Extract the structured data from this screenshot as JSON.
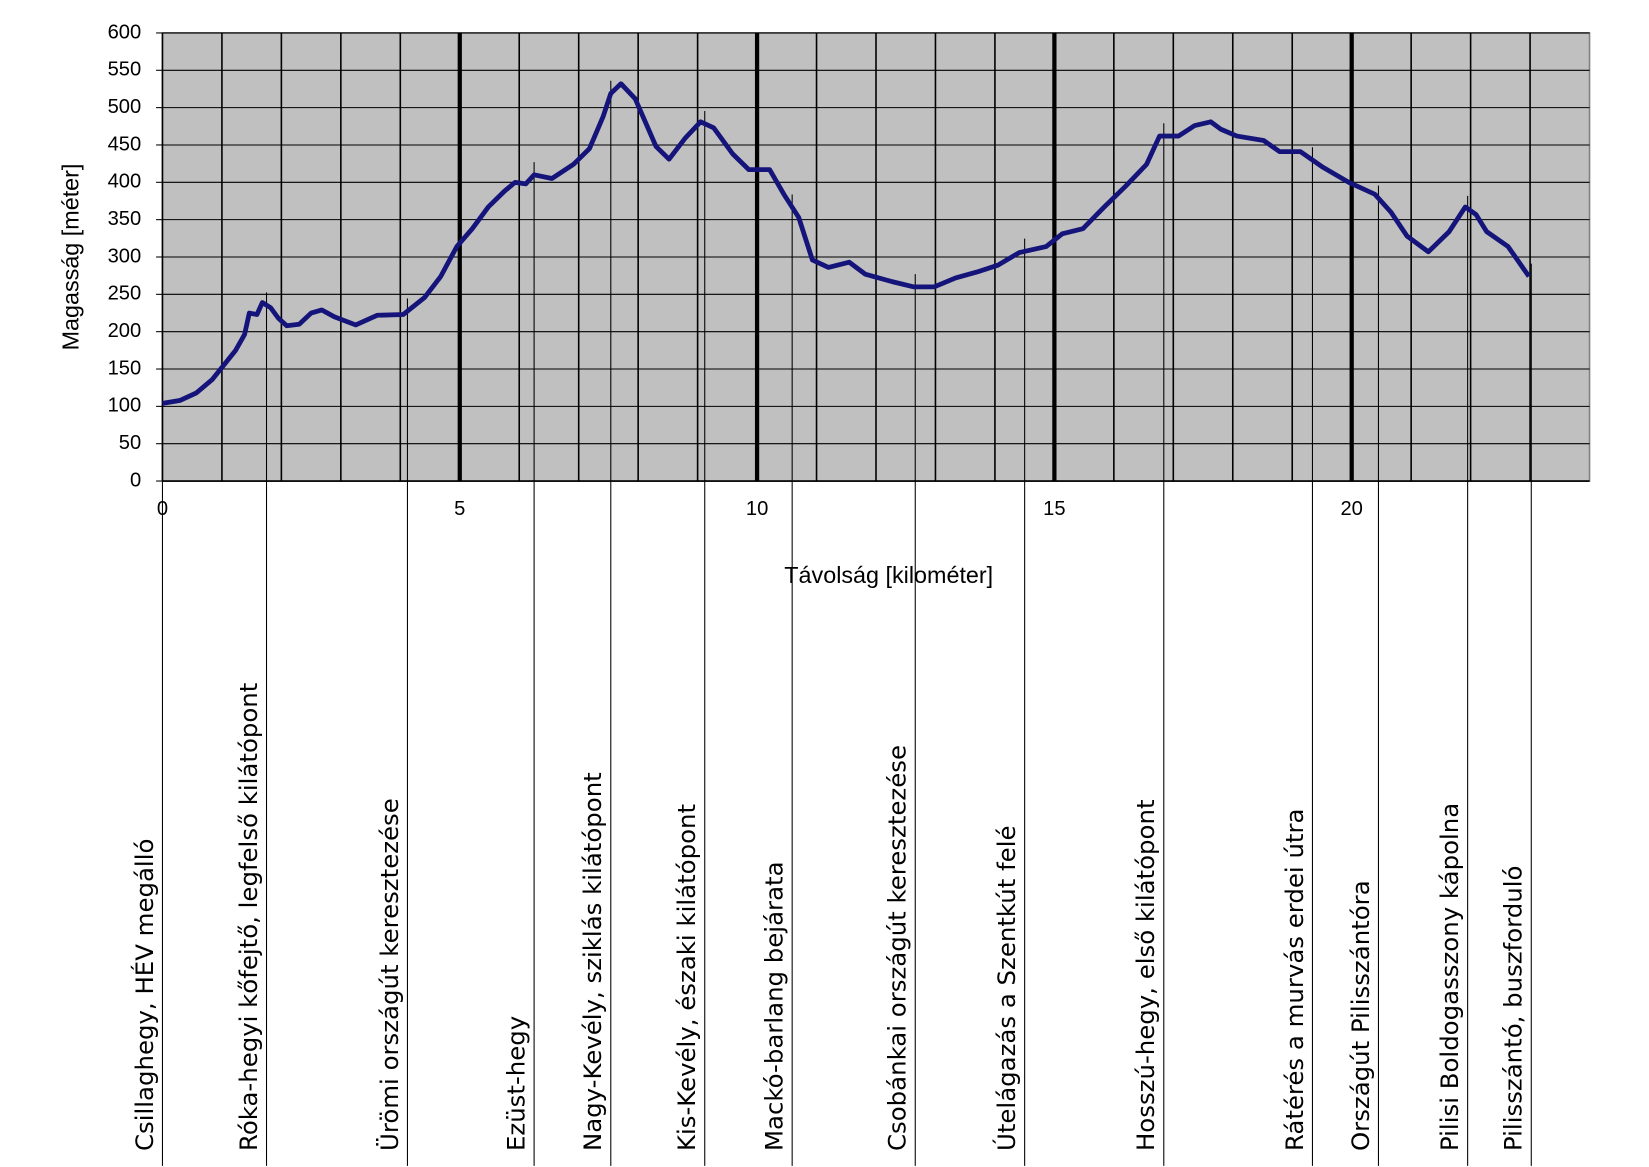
{
  "chart_data": {
    "type": "line",
    "y_label": "Magasság [méter]",
    "x_label": "Távolság [kilométer]",
    "xlim": [
      0,
      24
    ],
    "ylim": [
      0,
      600
    ],
    "xticks": [
      0,
      5,
      10,
      15,
      20
    ],
    "x_gridlines": [
      1,
      2,
      3,
      4,
      5,
      6,
      7,
      8,
      9,
      10,
      11,
      12,
      13,
      14,
      15,
      16,
      17,
      18,
      19,
      20,
      21,
      22,
      23
    ],
    "yticks": [
      0,
      50,
      100,
      150,
      200,
      250,
      300,
      350,
      400,
      450,
      500,
      550,
      600
    ],
    "grid": true,
    "plot_background": "#c0c0c0",
    "series": [
      {
        "name": "Magasság",
        "color": "#14147a",
        "x": [
          0,
          0.3,
          0.57,
          0.84,
          1.02,
          1.23,
          1.38,
          1.46,
          1.59,
          1.68,
          1.82,
          1.95,
          2.09,
          2.3,
          2.5,
          2.68,
          2.89,
          3.25,
          3.61,
          4.05,
          4.41,
          4.68,
          4.95,
          5.21,
          5.48,
          5.75,
          5.93,
          6.11,
          6.25,
          6.55,
          6.91,
          7.18,
          7.41,
          7.54,
          7.71,
          7.95,
          8.12,
          8.3,
          8.52,
          8.79,
          9.05,
          9.27,
          9.59,
          9.86,
          10.21,
          10.45,
          10.7,
          10.93,
          11.2,
          11.55,
          11.82,
          12.27,
          12.63,
          12.98,
          13.34,
          13.7,
          14.05,
          14.41,
          14.86,
          15.13,
          15.48,
          15.84,
          16.2,
          16.55,
          16.77,
          17.09,
          17.36,
          17.63,
          17.8,
          18.07,
          18.52,
          18.79,
          19.14,
          19.5,
          19.95,
          20.39,
          20.66,
          20.93,
          21.29,
          21.64,
          21.91,
          22.09,
          22.27,
          22.63,
          22.98
        ],
        "values": [
          104,
          108,
          118,
          136,
          154,
          175,
          196,
          225,
          223,
          239,
          232,
          218,
          208,
          210,
          225,
          229,
          220,
          209,
          222,
          223,
          246,
          274,
          314,
          338,
          367,
          388,
          400,
          398,
          410,
          405,
          424,
          445,
          488,
          519,
          532,
          512,
          481,
          448,
          431,
          459,
          481,
          473,
          438,
          417,
          417,
          384,
          353,
          296,
          286,
          293,
          277,
          267,
          260,
          260,
          272,
          280,
          289,
          306,
          314,
          331,
          338,
          367,
          395,
          424,
          462,
          462,
          476,
          481,
          471,
          462,
          456,
          441,
          441,
          421,
          400,
          384,
          360,
          328,
          307,
          334,
          367,
          357,
          334,
          314,
          274
        ]
      }
    ],
    "landmarks": [
      {
        "label": "Csillaghegy, HÉV megálló",
        "km": 0
      },
      {
        "label": "Róka-hegyi kőfejtő, legfelső kilátópont",
        "km": 1.75
      },
      {
        "label": "Ürömi országút keresztezése",
        "km": 4.12
      },
      {
        "label": "Ezüst-hegy",
        "km": 6.25
      },
      {
        "label": "Nagy-Kevély, sziklás kilátópont",
        "km": 7.54
      },
      {
        "label": "Kis-Kevély, északi kilátópont",
        "km": 9.12
      },
      {
        "label": "Mackó-barlang bejárata",
        "km": 10.59
      },
      {
        "label": "Csobánkai országút keresztezése",
        "km": 12.66
      },
      {
        "label": "Útelágazás a Szentkút felé",
        "km": 14.5
      },
      {
        "label": "Hosszú-hegy, első kilátópont",
        "km": 16.84
      },
      {
        "label": "Rátérés a murvás erdei útra",
        "km": 19.34
      },
      {
        "label": "Országút Pilisszántóra",
        "km": 20.45
      },
      {
        "label": "Pilisi Boldogasszony kápolna",
        "km": 21.95
      },
      {
        "label": "Pilisszántó, buszforduló",
        "km": 23.02
      }
    ]
  }
}
